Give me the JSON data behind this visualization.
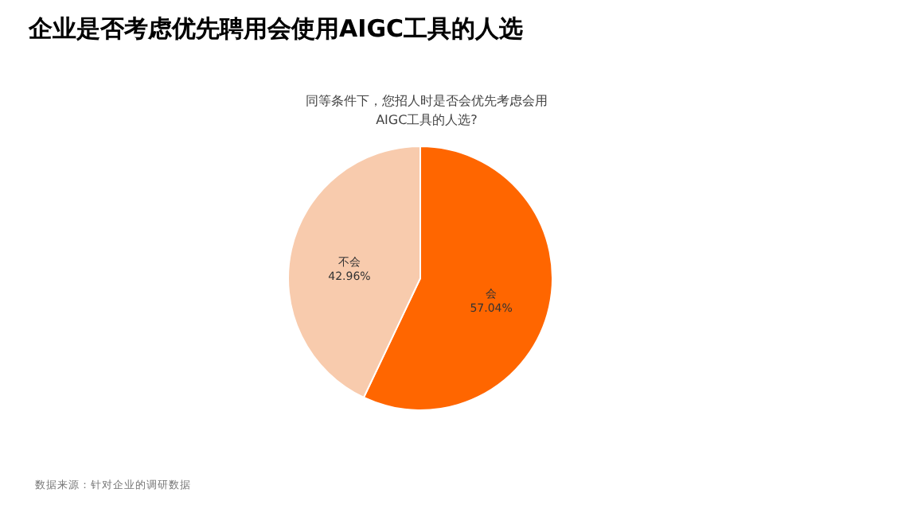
{
  "chart_data": {
    "type": "pie",
    "title": "企业是否考虑优先聘用会使用AIGC工具的人选",
    "subtitle": "同等条件下，您招人时是否会优先考虑会用\nAIGC工具的人选?",
    "categories": [
      "会",
      "不会"
    ],
    "values": [
      57.04,
      42.96
    ],
    "colors": [
      "#ff6600",
      "#f8cbad"
    ],
    "value_labels": [
      "57.04%",
      "42.96%"
    ],
    "annotations": [
      "数据来源：针对企业的调研数据"
    ]
  }
}
